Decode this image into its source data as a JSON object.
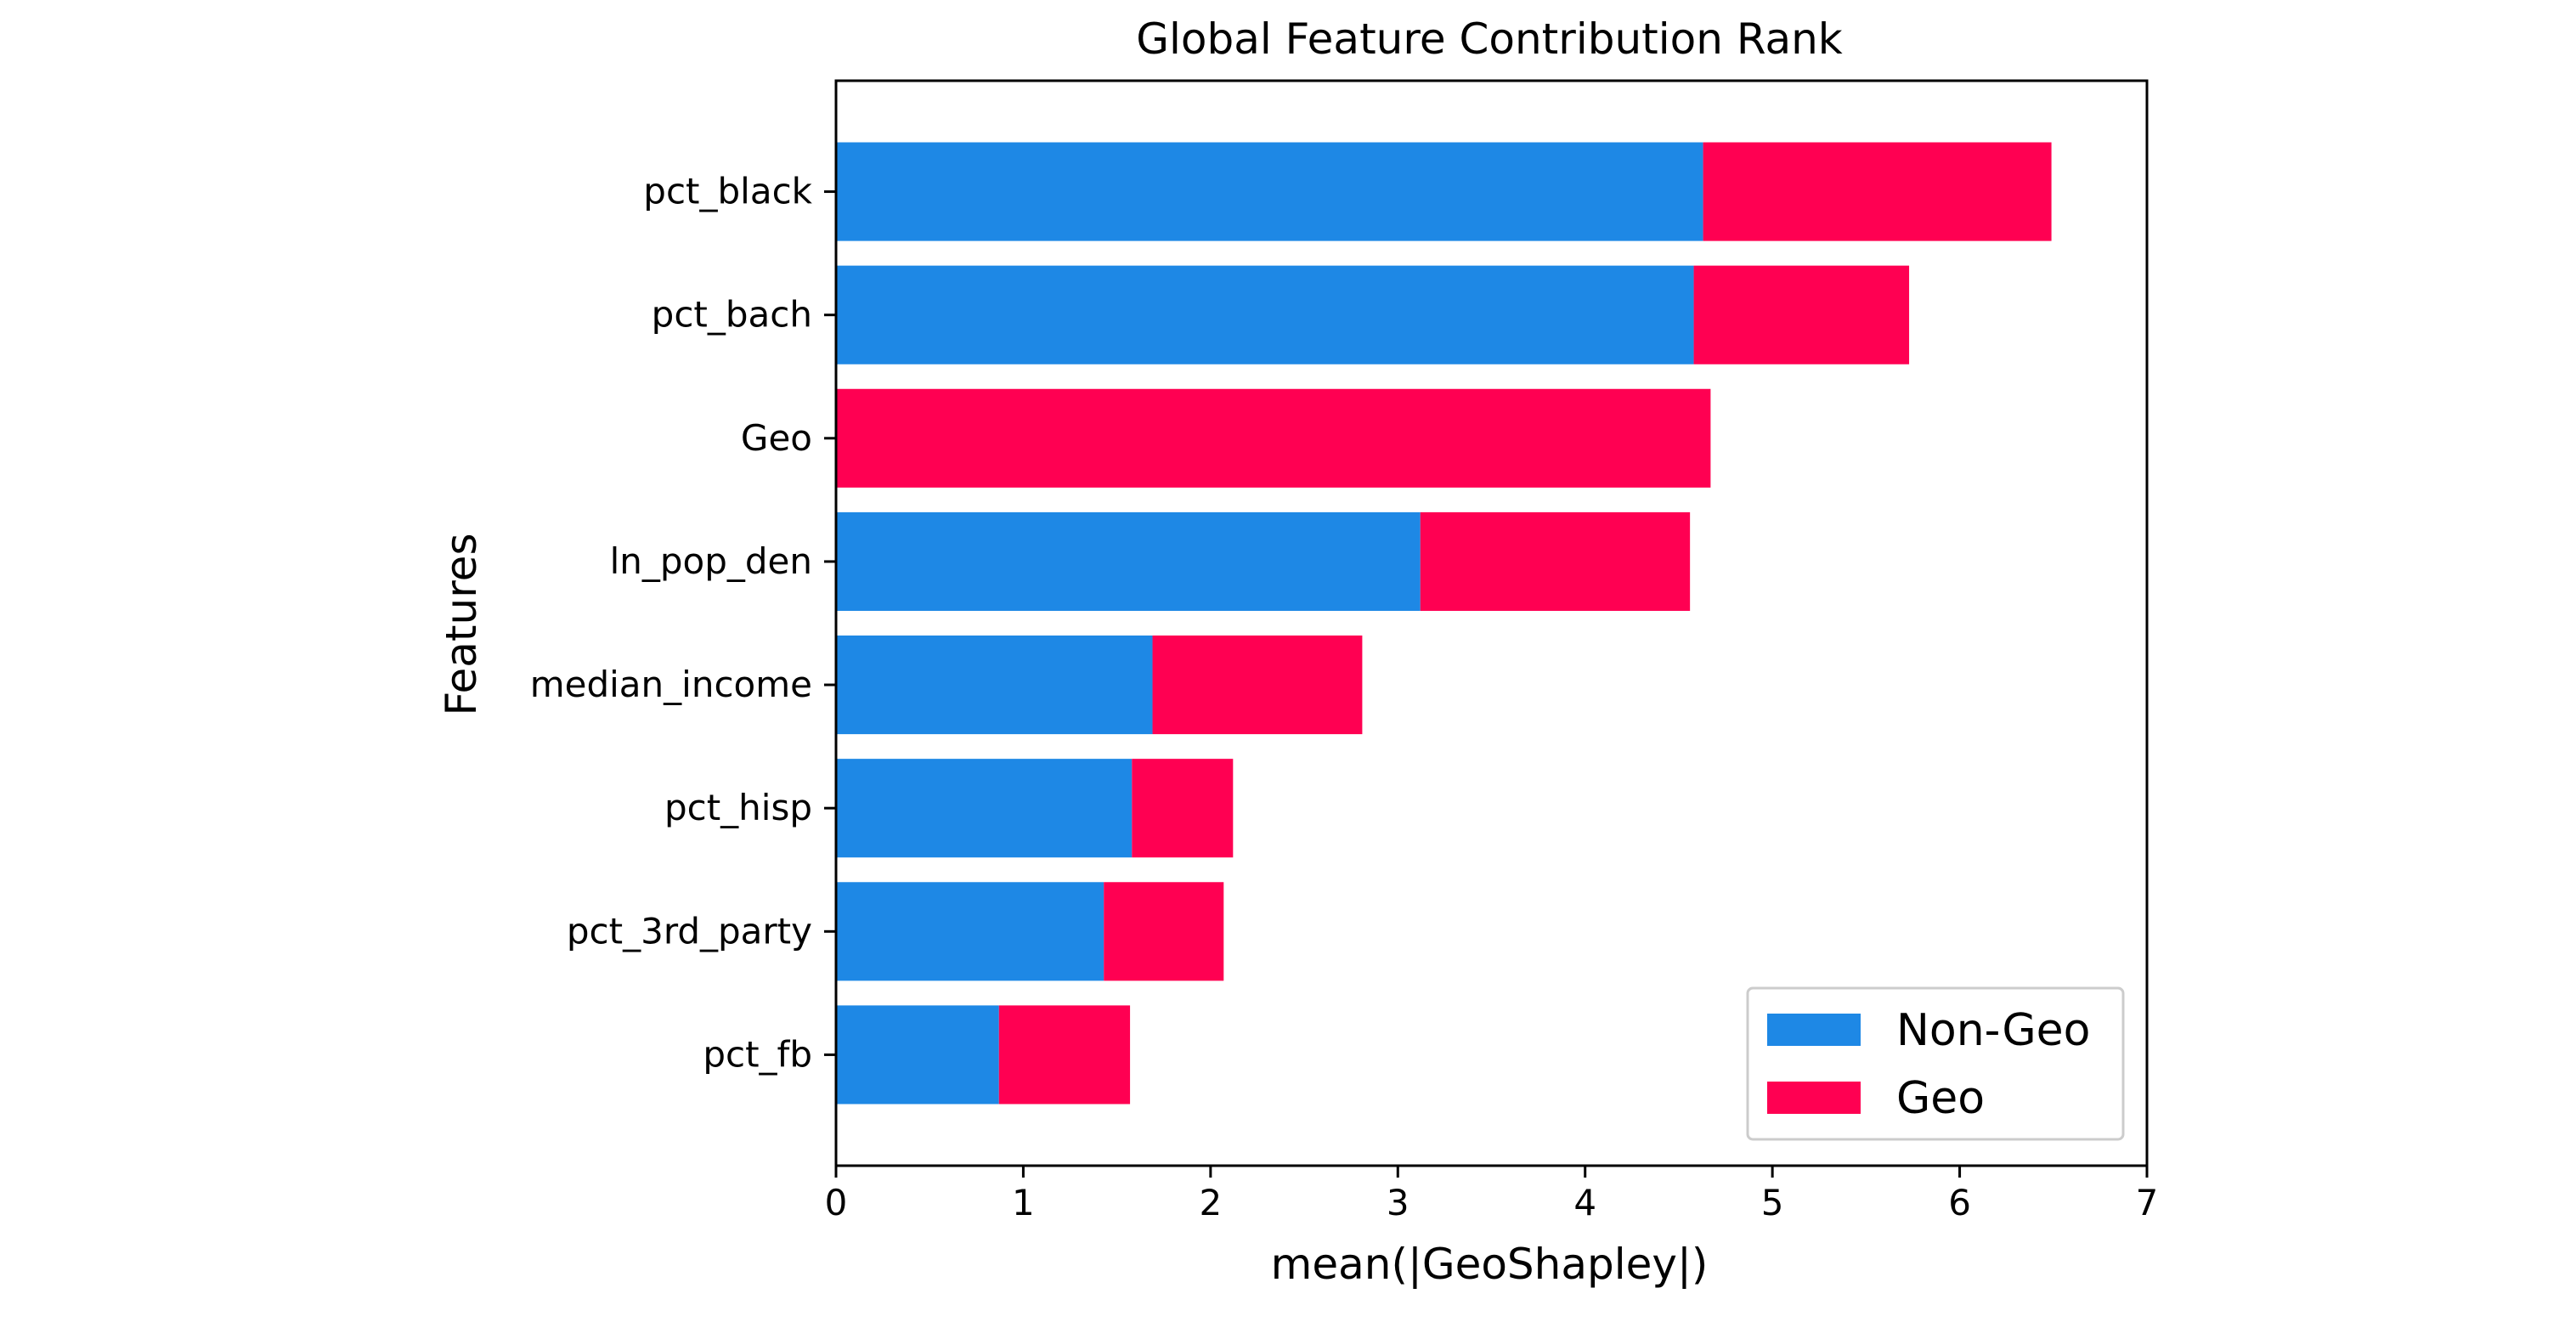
{
  "chart_data": {
    "type": "bar",
    "orientation": "horizontal",
    "stacked": true,
    "title": "Global Feature Contribution Rank",
    "xlabel": "mean(|GeoShapley|)",
    "ylabel": "Features",
    "xlim": [
      0,
      7
    ],
    "xticks": [
      "0",
      "1",
      "2",
      "3",
      "4",
      "5",
      "6",
      "7"
    ],
    "grid": false,
    "legend_position": "lower-right",
    "categories": [
      "pct_black",
      "pct_bach",
      "Geo",
      "ln_pop_den",
      "median_income",
      "pct_hisp",
      "pct_3rd_party",
      "pct_fb"
    ],
    "series": [
      {
        "name": "Non-Geo",
        "color": "#1e88e5",
        "values": [
          4.63,
          4.58,
          0,
          3.12,
          1.69,
          1.58,
          1.43,
          0.87
        ]
      },
      {
        "name": "Geo",
        "color": "#ff0052",
        "values": [
          1.86,
          1.15,
          4.67,
          1.44,
          1.12,
          0.54,
          0.64,
          0.7
        ]
      }
    ]
  }
}
